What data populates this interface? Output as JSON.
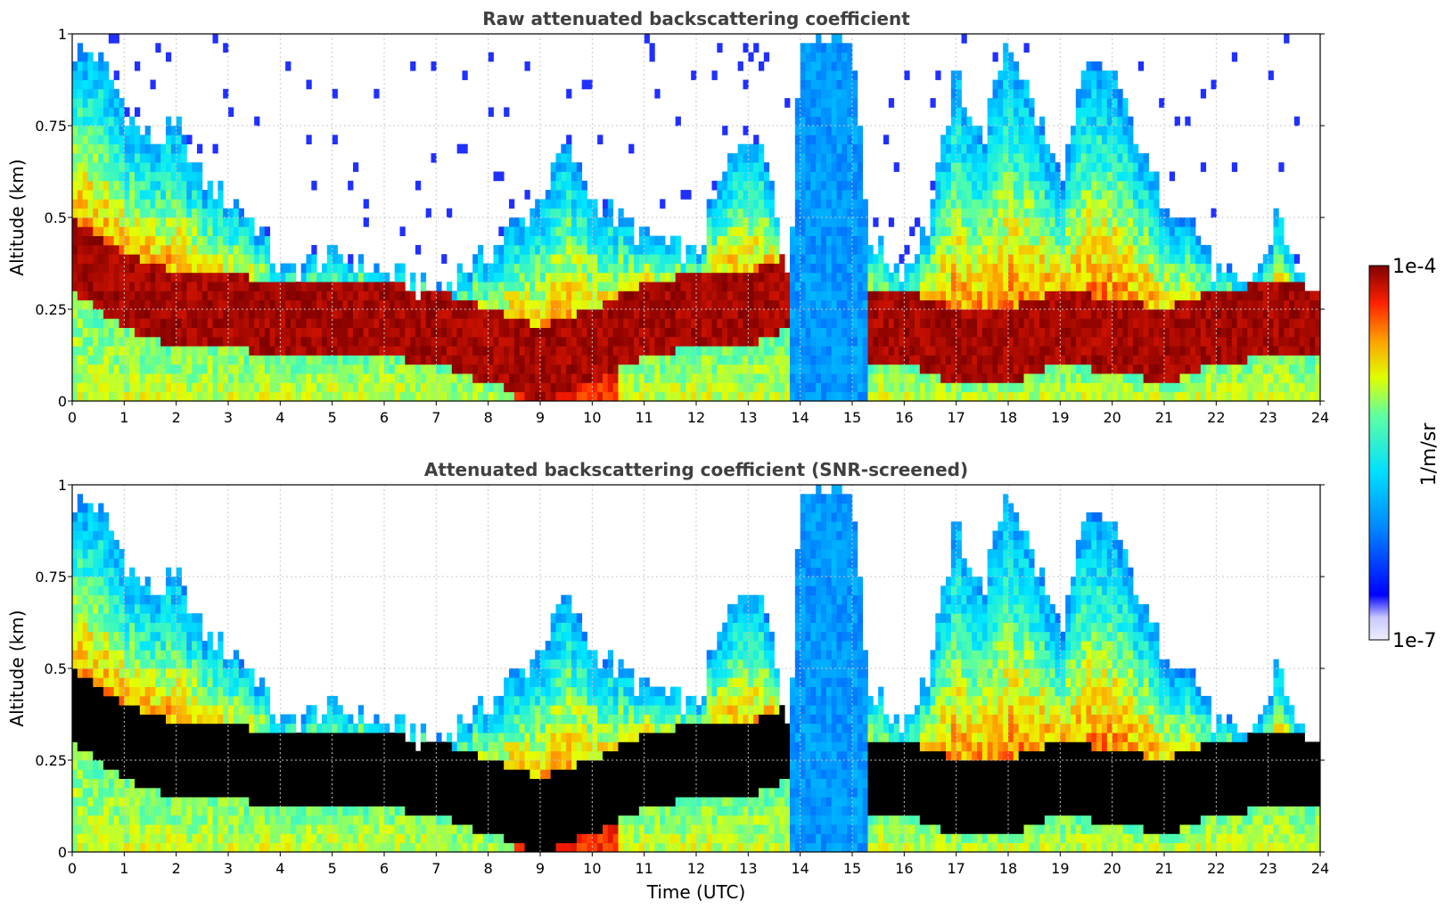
{
  "figure": {
    "colorbar": {
      "max_label": "1e-4",
      "min_label": "1e-7",
      "unit_label": "1/m/sr",
      "colormap": "jet"
    },
    "xlabel": "Time (UTC)"
  },
  "chart_data": [
    {
      "type": "heatmap",
      "title": "Raw attenuated backscattering coefficient",
      "xlabel": "",
      "ylabel": "Altitude (km)",
      "xlim": [
        0,
        24
      ],
      "ylim": [
        0,
        1
      ],
      "x_ticks": [
        "0",
        "1",
        "2",
        "3",
        "4",
        "5",
        "6",
        "7",
        "8",
        "9",
        "10",
        "11",
        "12",
        "13",
        "14",
        "15",
        "16",
        "17",
        "18",
        "19",
        "20",
        "21",
        "22",
        "23",
        "24"
      ],
      "y_ticks": [
        "0",
        "0.25",
        "0.5",
        "0.75",
        "1"
      ],
      "grid": true,
      "color_scale": {
        "min": "1e-7",
        "max": "1e-4",
        "log": true
      },
      "layer_top_km": [
        [
          0,
          0.95
        ],
        [
          0.5,
          0.95
        ],
        [
          1,
          0.8
        ],
        [
          1.5,
          0.7
        ],
        [
          2,
          0.75
        ],
        [
          2.5,
          0.6
        ],
        [
          3,
          0.55
        ],
        [
          3.5,
          0.5
        ],
        [
          4,
          0.35
        ],
        [
          5,
          0.4
        ],
        [
          6,
          0.35
        ],
        [
          7,
          0.3
        ],
        [
          8,
          0.4
        ],
        [
          9,
          0.55
        ],
        [
          9.5,
          0.7
        ],
        [
          10,
          0.55
        ],
        [
          11,
          0.45
        ],
        [
          12,
          0.4
        ],
        [
          12.5,
          0.6
        ],
        [
          13,
          0.75
        ],
        [
          13.5,
          0.6
        ],
        [
          13.8,
          0.3
        ],
        [
          14,
          1
        ],
        [
          15,
          1
        ],
        [
          15.3,
          0.45
        ],
        [
          15.6,
          0.4
        ],
        [
          16,
          0.35
        ],
        [
          16.5,
          0.5
        ],
        [
          17,
          0.9
        ],
        [
          17.5,
          0.7
        ],
        [
          18,
          1
        ],
        [
          18.5,
          0.8
        ],
        [
          19,
          0.6
        ],
        [
          19.5,
          0.9
        ],
        [
          20,
          0.9
        ],
        [
          20.5,
          0.7
        ],
        [
          21,
          0.55
        ],
        [
          21.5,
          0.5
        ],
        [
          22,
          0.35
        ],
        [
          22.5,
          0.3
        ],
        [
          23,
          0.4
        ],
        [
          23.2,
          0.55
        ],
        [
          23.5,
          0.35
        ],
        [
          24,
          0.3
        ]
      ],
      "layer_base_km": [
        [
          0,
          0.3
        ],
        [
          1,
          0.2
        ],
        [
          2,
          0.15
        ],
        [
          3,
          0.15
        ],
        [
          4,
          0.12
        ],
        [
          5,
          0.12
        ],
        [
          6,
          0.12
        ],
        [
          7,
          0.1
        ],
        [
          8,
          0.05
        ],
        [
          9,
          0.0
        ],
        [
          10,
          0.05
        ],
        [
          11,
          0.12
        ],
        [
          12,
          0.15
        ],
        [
          13,
          0.15
        ],
        [
          13.8,
          0.2
        ],
        [
          15.5,
          0.1
        ],
        [
          16,
          0.1
        ],
        [
          17,
          0.05
        ],
        [
          18,
          0.05
        ],
        [
          19,
          0.1
        ],
        [
          20,
          0.08
        ],
        [
          21,
          0.05
        ],
        [
          22,
          0.1
        ],
        [
          23,
          0.12
        ],
        [
          24,
          0.12
        ]
      ]
    },
    {
      "type": "heatmap",
      "title": "Attenuated backscattering coefficient (SNR-screened)",
      "xlabel": "Time (UTC)",
      "ylabel": "Altitude (km)",
      "xlim": [
        0,
        24
      ],
      "ylim": [
        0,
        1
      ],
      "x_ticks": [
        "0",
        "1",
        "2",
        "3",
        "4",
        "5",
        "6",
        "7",
        "8",
        "9",
        "10",
        "11",
        "12",
        "13",
        "14",
        "15",
        "16",
        "17",
        "18",
        "19",
        "20",
        "21",
        "22",
        "23",
        "24"
      ],
      "y_ticks": [
        "0",
        "0.25",
        "0.5",
        "0.75",
        "1"
      ],
      "grid": true,
      "color_scale": {
        "min": "1e-7",
        "max": "1e-4",
        "log": true
      },
      "screened": true
    }
  ]
}
